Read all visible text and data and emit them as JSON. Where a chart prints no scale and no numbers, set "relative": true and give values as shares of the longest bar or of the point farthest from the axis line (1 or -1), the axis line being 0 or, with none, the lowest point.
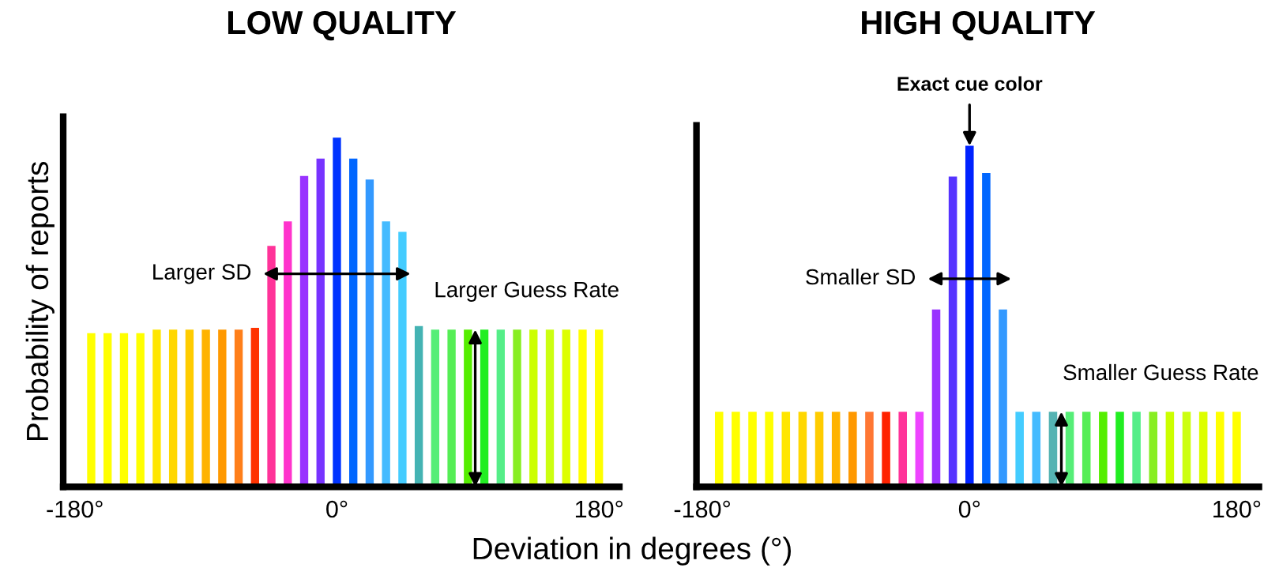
{
  "chart_data": [
    {
      "type": "bar",
      "title": "LOW QUALITY",
      "ylabel": "Probability of reports",
      "xlabel": "Deviation in degrees (°)",
      "relative": true,
      "x": [
        -168.75,
        -157.5,
        -146.25,
        -135,
        -123.75,
        -112.5,
        -101.25,
        -90,
        -78.75,
        -67.5,
        -56.25,
        -45,
        -33.75,
        -22.5,
        -11.25,
        0,
        11.25,
        22.5,
        33.75,
        45,
        56.25,
        67.5,
        78.75,
        90,
        101.25,
        112.5,
        123.75,
        135,
        146.25,
        157.5,
        168.75,
        180
      ],
      "values": [
        0.44,
        0.44,
        0.44,
        0.44,
        0.45,
        0.45,
        0.45,
        0.45,
        0.45,
        0.45,
        0.455,
        0.69,
        0.76,
        0.89,
        0.94,
        1,
        0.94,
        0.88,
        0.76,
        0.73,
        0.46,
        0.45,
        0.45,
        0.45,
        0.45,
        0.45,
        0.45,
        0.45,
        0.45,
        0.45,
        0.45,
        0.45
      ],
      "colors": [
        "#ffff00",
        "#ffff00",
        "#ffff00",
        "#ffff00",
        "#ffe600",
        "#ffd700",
        "#ffcc00",
        "#ffb300",
        "#ff9900",
        "#ff7f1a",
        "#ff3300",
        "#ff3399",
        "#ff33cc",
        "#9933ff",
        "#7733ff",
        "#0033ff",
        "#0066ff",
        "#3399ff",
        "#44bbff",
        "#44ccff",
        "#44b3b3",
        "#55ee77",
        "#55ee55",
        "#55ee00",
        "#22ee22",
        "#55ee88",
        "#88ee22",
        "#ccff00",
        "#ccff11",
        "#ddff00",
        "#ffff00",
        "#ffff00"
      ],
      "xlim": [
        -188,
        194
      ],
      "xticks": [
        {
          "value": -180,
          "label": "-180°"
        },
        {
          "value": 0,
          "label": "0°"
        },
        {
          "value": 180,
          "label": "180°"
        }
      ],
      "annotations": [
        "Larger SD",
        {
          "text": "Larger Guess Rate",
          "x": 95,
          "y": 0.45
        }
      ]
    },
    {
      "type": "bar",
      "title": "HIGH QUALITY",
      "relative": true,
      "x": [
        -168.75,
        -157.5,
        -146.25,
        -135,
        -123.75,
        -112.5,
        -101.25,
        -90,
        -78.75,
        -67.5,
        -56.25,
        -45,
        -33.75,
        -22.5,
        -11.25,
        0,
        11.25,
        22.5,
        33.75,
        45,
        56.25,
        67.5,
        78.75,
        90,
        101.25,
        112.5,
        123.75,
        135,
        146.25,
        157.5,
        168.75,
        180
      ],
      "values": [
        0.22,
        0.22,
        0.22,
        0.22,
        0.22,
        0.22,
        0.22,
        0.22,
        0.22,
        0.22,
        0.22,
        0.22,
        0.22,
        0.52,
        0.91,
        1,
        0.92,
        0.52,
        0.22,
        0.22,
        0.22,
        0.22,
        0.22,
        0.22,
        0.22,
        0.22,
        0.22,
        0.22,
        0.22,
        0.22,
        0.22,
        0.22
      ],
      "colors": [
        "#ffff00",
        "#ffff00",
        "#ffff00",
        "#ffff00",
        "#ffe600",
        "#ffd700",
        "#ffcc00",
        "#ffb300",
        "#ff9900",
        "#ff7733",
        "#ff2200",
        "#ff3399",
        "#ee44ff",
        "#9933ff",
        "#5533ff",
        "#0022ff",
        "#0066ff",
        "#3399ff",
        "#44ccff",
        "#44bbff",
        "#55b3b3",
        "#55ee77",
        "#55ee55",
        "#55ee00",
        "#22ee22",
        "#55ee88",
        "#88ee22",
        "#ccff00",
        "#ccff11",
        "#ddff00",
        "#ffff00",
        "#ffff00"
      ],
      "xlim": [
        -184,
        195
      ],
      "xticks": [
        {
          "value": -180,
          "label": "-180°"
        },
        {
          "value": 0,
          "label": "0°"
        },
        {
          "value": 180,
          "label": "180°"
        }
      ],
      "annotations": [
        {
          "text": "Exact cue color",
          "x": 0,
          "y": 1
        },
        "Smaller SD",
        {
          "text": "Smaller Guess Rate",
          "x": 61.875,
          "y": 0.22
        }
      ]
    }
  ]
}
